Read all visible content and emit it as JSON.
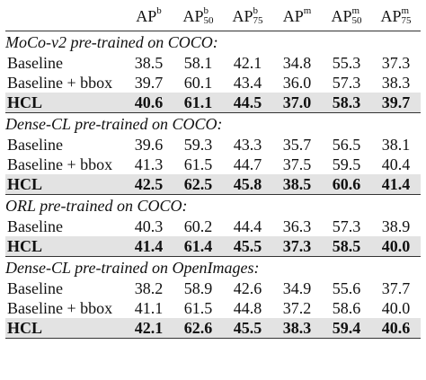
{
  "table": {
    "header": [
      {
        "base": "AP",
        "sup": "b"
      },
      {
        "base": "AP",
        "sup": "b",
        "sub": "50"
      },
      {
        "base": "AP",
        "sup": "b",
        "sub": "75"
      },
      {
        "base": "AP",
        "sup": "m"
      },
      {
        "base": "AP",
        "sup": "m",
        "sub": "50"
      },
      {
        "base": "AP",
        "sup": "m",
        "sub": "75"
      }
    ],
    "sections": [
      {
        "title": "MoCo-v2 pre-trained on COCO:",
        "rows": [
          {
            "label": "Baseline",
            "values": [
              "38.5",
              "58.1",
              "42.1",
              "34.8",
              "55.3",
              "37.3"
            ]
          },
          {
            "label": "Baseline + bbox",
            "values": [
              "39.7",
              "60.1",
              "43.4",
              "36.0",
              "57.3",
              "38.3"
            ]
          },
          {
            "label": "HCL",
            "values": [
              "40.6",
              "61.1",
              "44.5",
              "37.0",
              "58.3",
              "39.7"
            ],
            "bold": true
          }
        ]
      },
      {
        "title": "Dense-CL pre-trained on COCO:",
        "rows": [
          {
            "label": "Baseline",
            "values": [
              "39.6",
              "59.3",
              "43.3",
              "35.7",
              "56.5",
              "38.1"
            ]
          },
          {
            "label": "Baseline + bbox",
            "values": [
              "41.3",
              "61.5",
              "44.7",
              "37.5",
              "59.5",
              "40.4"
            ]
          },
          {
            "label": "HCL",
            "values": [
              "42.5",
              "62.5",
              "45.8",
              "38.5",
              "60.6",
              "41.4"
            ],
            "bold": true
          }
        ]
      },
      {
        "title": "ORL pre-trained on COCO:",
        "rows": [
          {
            "label": "Baseline",
            "values": [
              "40.3",
              "60.2",
              "44.4",
              "36.3",
              "57.3",
              "38.9"
            ]
          },
          {
            "label": "HCL",
            "values": [
              "41.4",
              "61.4",
              "45.5",
              "37.3",
              "58.5",
              "40.0"
            ],
            "bold": true
          }
        ]
      },
      {
        "title": "Dense-CL pre-trained on OpenImages:",
        "rows": [
          {
            "label": "Baseline",
            "values": [
              "38.2",
              "58.9",
              "42.6",
              "34.9",
              "55.6",
              "37.7"
            ]
          },
          {
            "label": "Baseline + bbox",
            "values": [
              "41.1",
              "61.5",
              "44.8",
              "37.2",
              "58.6",
              "40.0"
            ]
          },
          {
            "label": "HCL",
            "values": [
              "42.1",
              "62.6",
              "45.5",
              "38.3",
              "59.4",
              "40.6"
            ],
            "bold": true
          }
        ]
      }
    ]
  }
}
